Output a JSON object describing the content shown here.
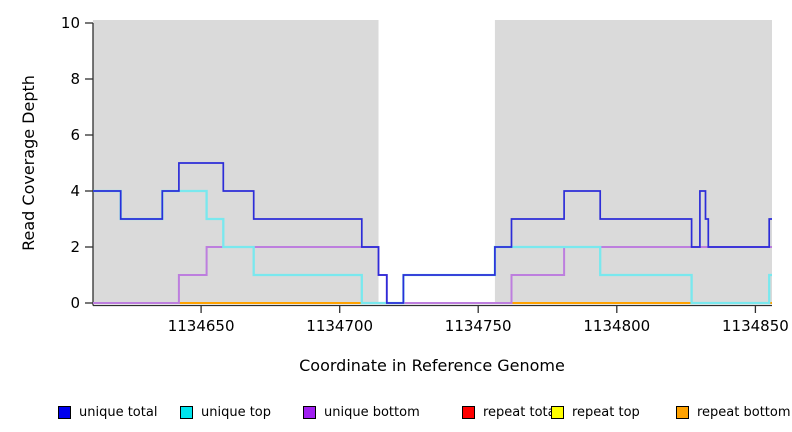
{
  "chart_data": {
    "type": "line",
    "subtype": "step-coverage-plot",
    "title": "",
    "xlabel": "Coordinate in Reference Genome",
    "ylabel": "Read Coverage Depth",
    "xlim": [
      1134611,
      1134856
    ],
    "ylim": [
      0,
      10
    ],
    "xticks": [
      1134650,
      1134700,
      1134750,
      1134800,
      1134850
    ],
    "yticks": [
      0,
      2,
      4,
      6,
      8,
      10
    ],
    "grid": false,
    "legend_position": "bottom",
    "plot_background": "#ffffff",
    "axis_color": "#2f2f2f",
    "shaded_regions": [
      {
        "x_start": 1134611,
        "x_end": 1134714,
        "color": "#dadada"
      },
      {
        "x_start": 1134756,
        "x_end": 1134856,
        "color": "#dadada"
      }
    ],
    "series": [
      {
        "name": "repeat total",
        "color": "#ff0000",
        "line_width": 1.6,
        "step_points": [
          [
            1134611,
            0
          ]
        ]
      },
      {
        "name": "repeat top",
        "color": "#ffff00",
        "line_width": 1.6,
        "step_points": [
          [
            1134611,
            0
          ]
        ]
      },
      {
        "name": "repeat bottom",
        "color": "#ffa200",
        "line_width": 2.0,
        "step_points": [
          [
            1134611,
            0
          ]
        ]
      },
      {
        "name": "unique bottom",
        "color": "#bd7ede",
        "line_width": 2.0,
        "step_points": [
          [
            1134611,
            0
          ],
          [
            1134642,
            1
          ],
          [
            1134652,
            2
          ],
          [
            1134714,
            1
          ],
          [
            1134717,
            0
          ],
          [
            1134762,
            1
          ],
          [
            1134781,
            2
          ]
        ]
      },
      {
        "name": "unique top",
        "color": "#79e8ee",
        "line_width": 2.3,
        "step_points": [
          [
            1134611,
            4
          ],
          [
            1134621,
            3
          ],
          [
            1134636,
            4
          ],
          [
            1134652,
            3
          ],
          [
            1134658,
            2
          ],
          [
            1134669,
            1
          ],
          [
            1134708,
            0
          ],
          [
            1134723,
            1
          ],
          [
            1134756,
            2
          ],
          [
            1134794,
            1
          ],
          [
            1134827,
            0
          ],
          [
            1134855,
            1
          ]
        ]
      },
      {
        "name": "unique total",
        "color": "#2d2dd8",
        "line_width": 1.7,
        "step_points": [
          [
            1134611,
            4
          ],
          [
            1134621,
            3
          ],
          [
            1134636,
            4
          ],
          [
            1134642,
            5
          ],
          [
            1134658,
            4
          ],
          [
            1134669,
            3
          ],
          [
            1134708,
            2
          ],
          [
            1134714,
            1
          ],
          [
            1134717,
            0
          ],
          [
            1134723,
            1
          ],
          [
            1134756,
            2
          ],
          [
            1134762,
            3
          ],
          [
            1134781,
            4
          ],
          [
            1134794,
            3
          ],
          [
            1134827,
            2
          ],
          [
            1134830,
            4
          ],
          [
            1134832,
            3
          ],
          [
            1134833,
            2
          ],
          [
            1134855,
            3
          ]
        ]
      }
    ],
    "legend": {
      "items": [
        {
          "label": "unique total",
          "color": "#0000ee"
        },
        {
          "label": "unique top",
          "color": "#00e5ee"
        },
        {
          "label": "unique bottom",
          "color": "#a020f0"
        },
        {
          "label": "repeat total",
          "color": "#ff0000"
        },
        {
          "label": "repeat top",
          "color": "#ffff00"
        },
        {
          "label": "repeat bottom",
          "color": "#ffa200"
        }
      ]
    }
  }
}
